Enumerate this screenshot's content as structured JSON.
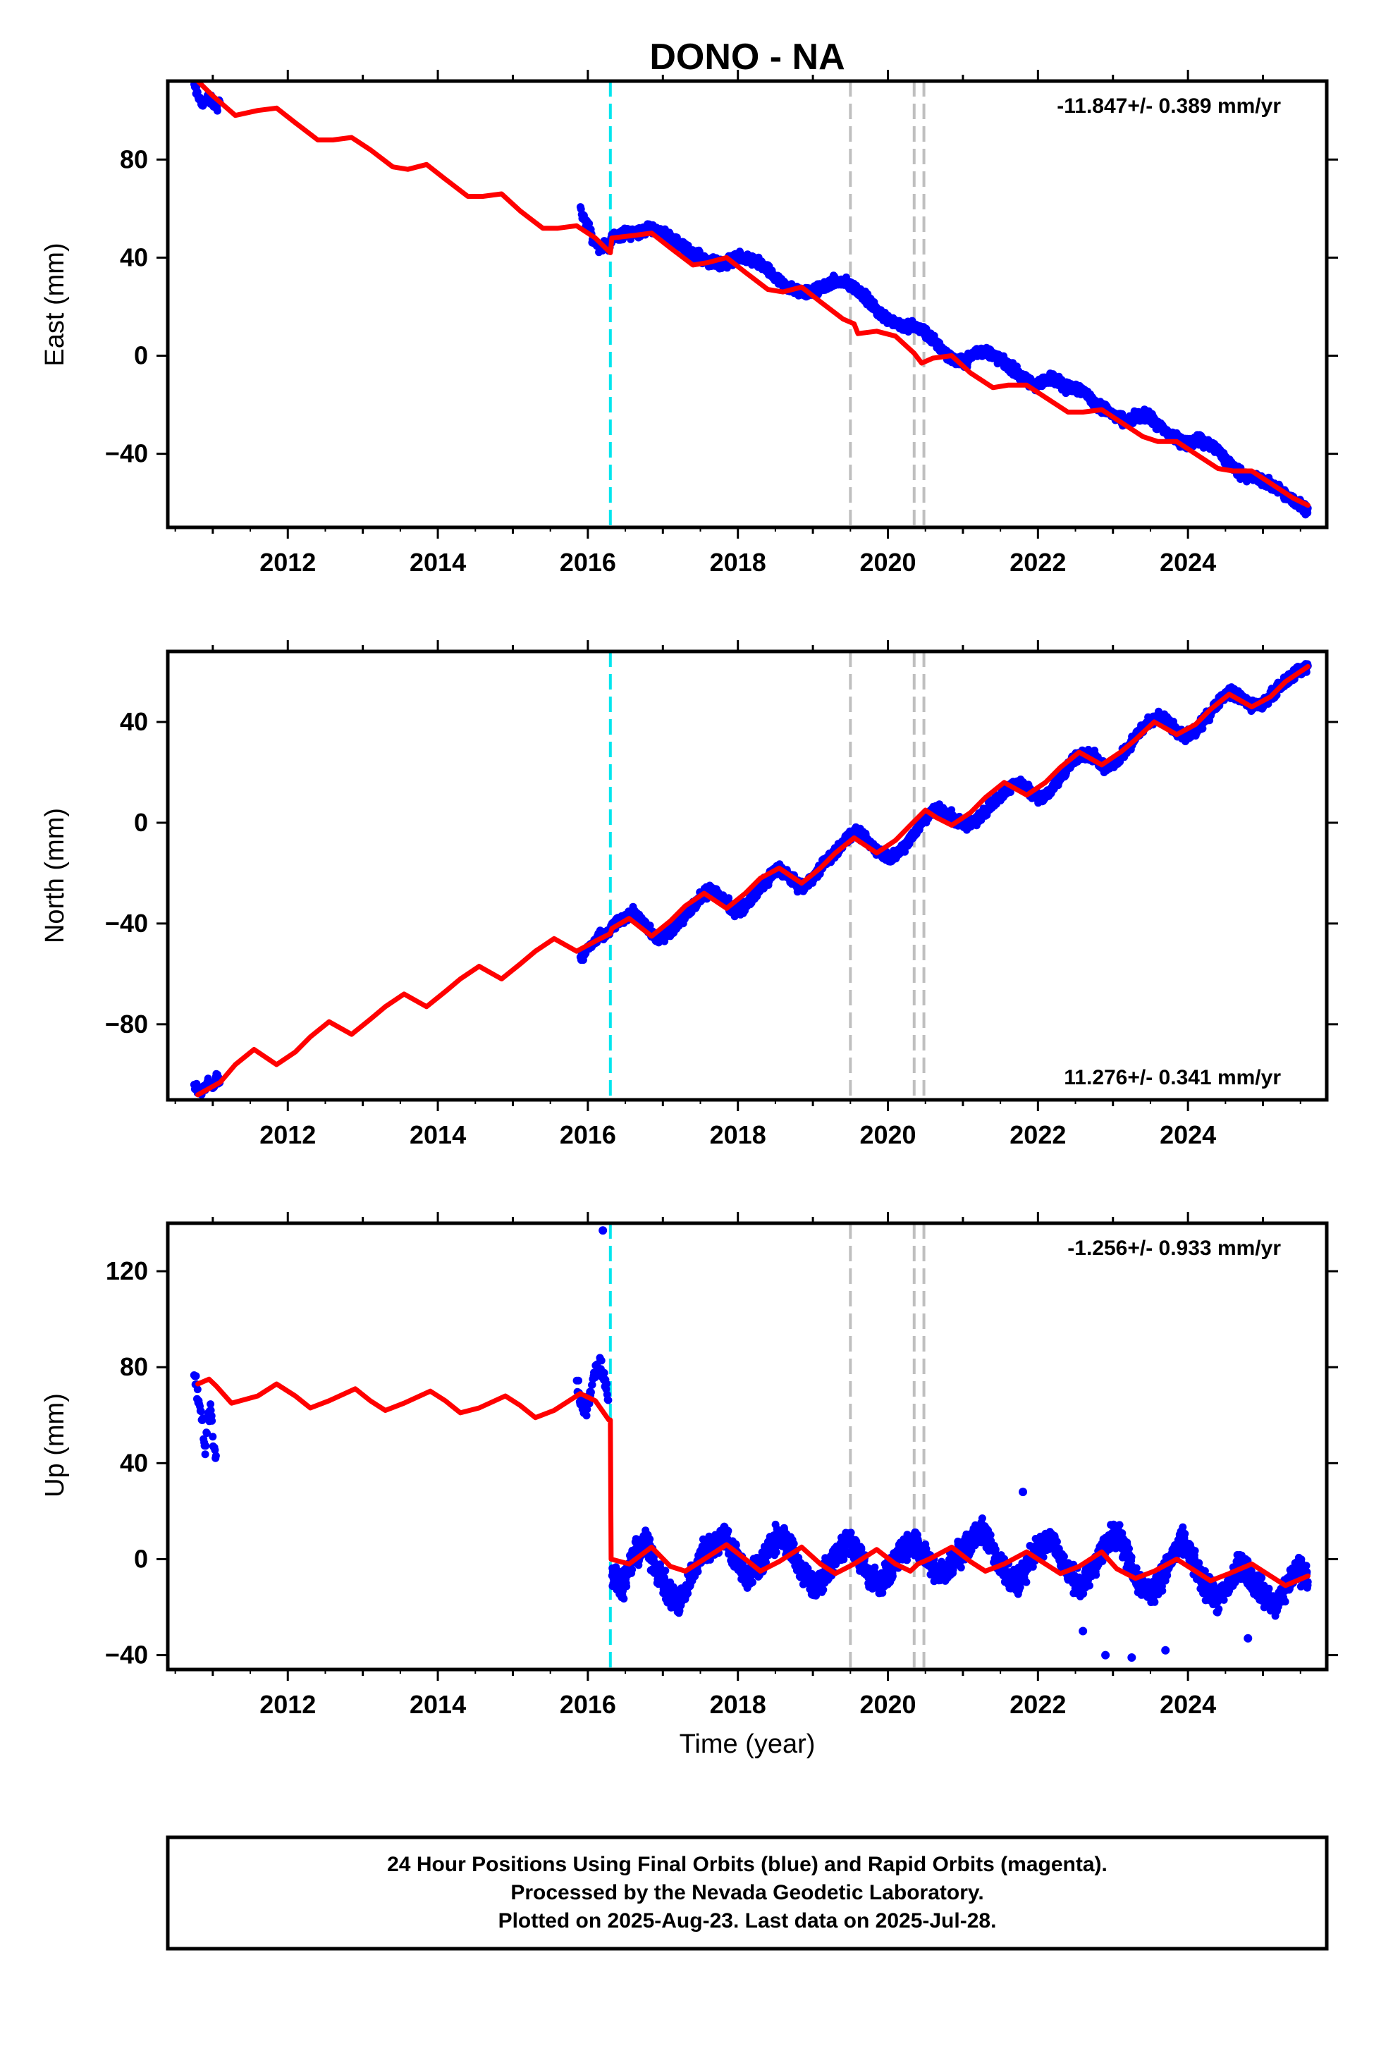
{
  "chart_data": [
    {
      "type": "scatter",
      "panel": "east",
      "title": "DONO - NA",
      "ylabel": "East (mm)",
      "xlim": [
        2010.4,
        2025.85
      ],
      "ylim": [
        -70,
        112
      ],
      "yticks": [
        -40,
        0,
        40,
        80
      ],
      "xticks": [
        2012,
        2014,
        2016,
        2018,
        2020,
        2022,
        2024
      ],
      "rate": "-11.847+/- 0.389 mm/yr",
      "model_line": {
        "color": "#ff0000",
        "x": [
          2010.8,
          2011.0,
          2011.3,
          2011.6,
          2011.85,
          2012.1,
          2012.4,
          2012.6,
          2012.85,
          2013.1,
          2013.4,
          2013.6,
          2013.85,
          2014.1,
          2014.4,
          2014.6,
          2014.85,
          2015.1,
          2015.4,
          2015.6,
          2015.85,
          2016.1,
          2016.3,
          2016.32,
          2016.6,
          2016.85,
          2017.1,
          2017.4,
          2017.6,
          2017.85,
          2018.1,
          2018.4,
          2018.6,
          2018.85,
          2019.1,
          2019.4,
          2019.55,
          2019.6,
          2019.85,
          2020.1,
          2020.35,
          2020.45,
          2020.6,
          2020.85,
          2021.1,
          2021.4,
          2021.6,
          2021.85,
          2022.1,
          2022.4,
          2022.6,
          2022.85,
          2023.1,
          2023.4,
          2023.6,
          2023.85,
          2024.1,
          2024.4,
          2024.6,
          2024.85,
          2025.1,
          2025.4,
          2025.6
        ],
        "y": [
          112,
          106,
          98,
          100,
          101,
          95,
          88,
          88,
          89,
          84,
          77,
          76,
          78,
          72,
          65,
          65,
          66,
          59,
          52,
          52,
          53,
          48,
          42,
          48,
          49,
          50,
          44,
          37,
          38,
          40,
          34,
          27,
          26,
          28,
          22,
          15,
          13,
          9,
          10,
          8,
          1,
          -3,
          -1,
          0,
          -7,
          -13,
          -12,
          -12,
          -17,
          -23,
          -23,
          -22,
          -27,
          -33,
          -35,
          -35,
          -40,
          -46,
          -47,
          -47,
          -52,
          -58,
          -61
        ]
      },
      "observations": {
        "color": "#0000ff",
        "segments": [
          {
            "x0": 2010.75,
            "x1": 2011.1,
            "y": [
              110,
              106,
              103,
              104,
              105,
              103,
              102,
              103
            ]
          },
          {
            "x0": 2015.9,
            "x1": 2016.3,
            "y": [
              60,
              55,
              52,
              47,
              45,
              43,
              46,
              44
            ]
          },
          {
            "x0": 2016.3,
            "x1": 2025.6,
            "y": [
              48,
              49,
              50,
              51,
              52,
              50,
              48,
              45,
              42,
              40,
              38,
              37,
              39,
              40,
              39,
              37,
              33,
              29,
              27,
              26,
              26,
              28,
              30,
              30,
              28,
              25,
              20,
              16,
              14,
              12,
              12,
              10,
              6,
              2,
              -2,
              -3,
              1,
              2,
              0,
              -3,
              -6,
              -10,
              -12,
              -10,
              -9,
              -13,
              -13,
              -15,
              -20,
              -22,
              -25,
              -27,
              -25,
              -24,
              -28,
              -31,
              -34,
              -36,
              -34,
              -36,
              -38,
              -43,
              -47,
              -49,
              -50,
              -52,
              -54,
              -58,
              -60,
              -63
            ]
          }
        ]
      }
    },
    {
      "type": "scatter",
      "panel": "north",
      "ylabel": "North (mm)",
      "xlim": [
        2010.4,
        2025.85
      ],
      "ylim": [
        -110,
        68
      ],
      "yticks": [
        -80,
        -40,
        0,
        40
      ],
      "xticks": [
        2012,
        2014,
        2016,
        2018,
        2020,
        2022,
        2024
      ],
      "rate": "11.276+/- 0.341 mm/yr",
      "model_line": {
        "color": "#ff0000",
        "x": [
          2010.8,
          2011.1,
          2011.3,
          2011.55,
          2011.85,
          2012.1,
          2012.3,
          2012.55,
          2012.85,
          2013.1,
          2013.3,
          2013.55,
          2013.85,
          2014.1,
          2014.3,
          2014.55,
          2014.85,
          2015.1,
          2015.3,
          2015.55,
          2015.85,
          2016.1,
          2016.3,
          2016.32,
          2016.55,
          2016.85,
          2017.1,
          2017.3,
          2017.55,
          2017.85,
          2018.1,
          2018.3,
          2018.55,
          2018.85,
          2019.1,
          2019.3,
          2019.55,
          2019.85,
          2020.1,
          2020.3,
          2020.5,
          2020.65,
          2020.85,
          2021.1,
          2021.3,
          2021.55,
          2021.85,
          2022.1,
          2022.3,
          2022.55,
          2022.85,
          2023.1,
          2023.3,
          2023.55,
          2023.85,
          2024.1,
          2024.3,
          2024.55,
          2024.85,
          2025.1,
          2025.3,
          2025.6
        ],
        "y": [
          -108,
          -103,
          -96,
          -90,
          -96,
          -91,
          -85,
          -79,
          -84,
          -78,
          -73,
          -68,
          -73,
          -67,
          -62,
          -57,
          -62,
          -56,
          -51,
          -46,
          -51,
          -47,
          -44,
          -42,
          -38,
          -45,
          -39,
          -33,
          -28,
          -34,
          -28,
          -22,
          -18,
          -24,
          -18,
          -12,
          -6,
          -12,
          -7,
          -1,
          5,
          2,
          -1,
          4,
          10,
          16,
          11,
          16,
          22,
          28,
          23,
          28,
          33,
          40,
          35,
          39,
          45,
          51,
          46,
          50,
          56,
          62
        ]
      },
      "observations": {
        "color": "#0000ff",
        "segments": [
          {
            "x0": 2010.75,
            "x1": 2011.1,
            "y": [
              -104,
              -106,
              -108,
              -105,
              -103,
              -104,
              -101,
              -102
            ]
          },
          {
            "x0": 2015.9,
            "x1": 2016.3,
            "y": [
              -55,
              -52,
              -50,
              -48,
              -46,
              -45,
              -44,
              -43
            ]
          },
          {
            "x0": 2016.3,
            "x1": 2025.6,
            "y": [
              -42,
              -38,
              -36,
              -40,
              -46,
              -44,
              -40,
              -35,
              -30,
              -26,
              -30,
              -35,
              -33,
              -28,
              -22,
              -18,
              -22,
              -26,
              -22,
              -16,
              -12,
              -6,
              -4,
              -8,
              -12,
              -14,
              -10,
              -4,
              2,
              6,
              3,
              0,
              -1,
              3,
              8,
              12,
              16,
              14,
              10,
              12,
              18,
              24,
              28,
              26,
              22,
              24,
              30,
              36,
              40,
              42,
              38,
              34,
              36,
              42,
              48,
              52,
              50,
              46,
              47,
              52,
              56,
              60,
              62
            ]
          }
        ]
      }
    },
    {
      "type": "scatter",
      "panel": "up",
      "ylabel": "Up (mm)",
      "xlabel": "Time (year)",
      "xlim": [
        2010.4,
        2025.85
      ],
      "ylim": [
        -46,
        140
      ],
      "yticks": [
        -40,
        0,
        40,
        80,
        120
      ],
      "xticks": [
        2012,
        2014,
        2016,
        2018,
        2020,
        2022,
        2024
      ],
      "rate": "-1.256+/- 0.933 mm/yr",
      "model_line": {
        "color": "#ff0000",
        "x": [
          2010.8,
          2010.95,
          2011.05,
          2011.25,
          2011.6,
          2011.85,
          2012.1,
          2012.3,
          2012.55,
          2012.9,
          2013.1,
          2013.3,
          2013.55,
          2013.9,
          2014.1,
          2014.3,
          2014.55,
          2014.9,
          2015.1,
          2015.3,
          2015.55,
          2015.9,
          2016.1,
          2016.28,
          2016.3,
          2016.31,
          2016.55,
          2016.85,
          2017.1,
          2017.3,
          2017.55,
          2017.85,
          2018.1,
          2018.3,
          2018.55,
          2018.85,
          2019.1,
          2019.3,
          2019.55,
          2019.85,
          2020.1,
          2020.3,
          2020.4,
          2020.55,
          2020.85,
          2021.1,
          2021.3,
          2021.55,
          2021.85,
          2022.1,
          2022.3,
          2022.55,
          2022.85,
          2023.05,
          2023.3,
          2023.55,
          2023.85,
          2024.05,
          2024.3,
          2024.55,
          2024.85,
          2025.05,
          2025.3,
          2025.6
        ],
        "y": [
          73,
          75,
          72,
          65,
          68,
          73,
          68,
          63,
          66,
          71,
          66,
          62,
          65,
          70,
          66,
          61,
          63,
          68,
          64,
          59,
          62,
          69,
          66,
          58,
          58,
          0,
          -2,
          5,
          -3,
          -5,
          0,
          6,
          0,
          -5,
          -1,
          5,
          -2,
          -6,
          -2,
          4,
          -2,
          -5,
          -2,
          0,
          5,
          -1,
          -5,
          -2,
          3,
          -2,
          -6,
          -3,
          3,
          -4,
          -8,
          -5,
          0,
          -4,
          -9,
          -6,
          -2,
          -6,
          -11,
          -7
        ]
      },
      "observations": {
        "color": "#0000ff",
        "segments": [
          {
            "x0": 2010.75,
            "x1": 2011.05,
            "y": [
              76,
              70,
              62,
              56,
              48,
              58,
              64,
              46,
              40
            ]
          },
          {
            "x0": 2015.85,
            "x1": 2016.28,
            "y": [
              72,
              65,
              62,
              70,
              78,
              82,
              76,
              66
            ]
          },
          {
            "x0": 2016.32,
            "x1": 2025.6,
            "y": [
              -6,
              -10,
              2,
              6,
              -4,
              -14,
              -18,
              -8,
              2,
              6,
              10,
              2,
              -8,
              -4,
              4,
              10,
              4,
              -6,
              -12,
              -6,
              2,
              8,
              2,
              -8,
              -10,
              -2,
              4,
              8,
              0,
              -6,
              -4,
              2,
              8,
              12,
              4,
              -6,
              -10,
              -2,
              4,
              10,
              0,
              -8,
              -12,
              -2,
              6,
              12,
              0,
              -10,
              -14,
              -8,
              2,
              8,
              -4,
              -12,
              -18,
              -10,
              -2,
              -8,
              -14,
              -20,
              -12,
              -4,
              -6
            ]
          }
        ],
        "outliers": [
          [
            2016.2,
            137
          ],
          [
            2021.8,
            28
          ],
          [
            2022.9,
            -40
          ],
          [
            2023.25,
            -41
          ],
          [
            2023.7,
            -38
          ],
          [
            2022.6,
            -30
          ],
          [
            2024.8,
            -33
          ]
        ]
      }
    }
  ],
  "footer": {
    "line1": "24 Hour Positions Using Final Orbits (blue) and Rapid Orbits (magenta).",
    "line2": "Processed by the Nevada Geodetic Laboratory.",
    "line3": "Plotted on 2025-Aug-23. Last data on 2025-Jul-28."
  },
  "events": {
    "cyan_line": {
      "x": 2016.3,
      "color": "#00e5ee"
    },
    "grey_lines": {
      "x": [
        2019.5,
        2020.35,
        2020.48
      ],
      "color": "#bfbfbf"
    }
  }
}
